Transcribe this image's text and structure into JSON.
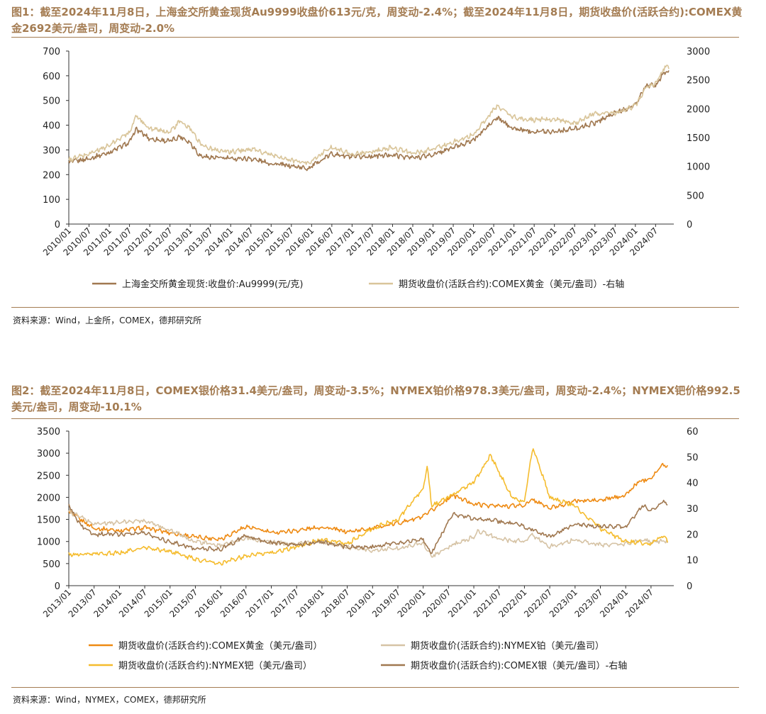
{
  "figures": [
    {
      "title": "图1：截至2024年11月8日，上海金交所黄金现货Au9999收盘价613元/克，周变动-2.4%；截至2024年11月8日，期货收盘价(活跃合约):COMEX黄金2692美元/盎司，周变动-2.0%",
      "source": "资料来源：Wind，上金所，COMEX，德邦研究所"
    },
    {
      "title": "图2：截至2024年11月8日，COMEX银价格31.4美元/盎司，周变动-3.5%；NYMEX铂价格978.3美元/盎司，周变动-2.4%；NYMEX钯价格992.5美元/盎司，周变动-10.1%",
      "source": "资料来源：Wind，NYMEX，COMEX，德邦研究所"
    }
  ],
  "chart_data": [
    {
      "type": "line",
      "xlabel": "",
      "ylabel": "",
      "x_ticks": [
        "2010/01",
        "2010/07",
        "2011/01",
        "2011/07",
        "2012/01",
        "2012/07",
        "2013/01",
        "2013/07",
        "2014/01",
        "2014/07",
        "2015/01",
        "2015/07",
        "2016/01",
        "2016/07",
        "2017/01",
        "2017/07",
        "2018/01",
        "2018/07",
        "2019/01",
        "2019/07",
        "2020/01",
        "2020/07",
        "2021/01",
        "2021/07",
        "2022/01",
        "2022/07",
        "2023/01",
        "2023/07",
        "2024/01",
        "2024/07"
      ],
      "y_left": {
        "range": [
          0,
          700
        ],
        "ticks": [
          0,
          100,
          200,
          300,
          400,
          500,
          600,
          700
        ]
      },
      "y_right": {
        "range": [
          0,
          3000
        ],
        "ticks": [
          0,
          500,
          1000,
          1500,
          2000,
          2500,
          3000
        ]
      },
      "grid": false,
      "legend_position": "bottom",
      "series": [
        {
          "name": "上海金交所黄金现货:收盘价:Au9999(元/克)",
          "axis": "left",
          "color": "#a07850",
          "x": [
            "2010/01",
            "2010/07",
            "2011/01",
            "2011/07",
            "2011/09",
            "2012/01",
            "2012/07",
            "2012/10",
            "2013/01",
            "2013/04",
            "2013/07",
            "2014/01",
            "2014/07",
            "2015/01",
            "2015/07",
            "2015/12",
            "2016/07",
            "2017/01",
            "2017/07",
            "2018/01",
            "2018/07",
            "2019/01",
            "2019/07",
            "2020/01",
            "2020/08",
            "2021/01",
            "2021/07",
            "2022/01",
            "2022/07",
            "2023/01",
            "2023/07",
            "2024/01",
            "2024/04",
            "2024/07",
            "2024/10",
            "2024/11"
          ],
          "values": [
            250,
            265,
            290,
            330,
            385,
            345,
            335,
            355,
            330,
            275,
            270,
            265,
            265,
            245,
            235,
            225,
            285,
            270,
            275,
            280,
            268,
            280,
            310,
            340,
            430,
            385,
            375,
            375,
            385,
            410,
            450,
            480,
            560,
            560,
            620,
            613
          ]
        },
        {
          "name": "期货收盘价(活跃合约):COMEX黄金（美元/盎司）-右轴",
          "axis": "right",
          "color": "#d9c59a",
          "x": [
            "2010/01",
            "2010/07",
            "2011/01",
            "2011/07",
            "2011/09",
            "2012/01",
            "2012/07",
            "2012/10",
            "2013/01",
            "2013/04",
            "2013/07",
            "2014/01",
            "2014/07",
            "2015/01",
            "2015/07",
            "2015/12",
            "2016/07",
            "2017/01",
            "2017/07",
            "2018/01",
            "2018/07",
            "2019/01",
            "2019/07",
            "2020/01",
            "2020/08",
            "2021/01",
            "2021/07",
            "2022/01",
            "2022/07",
            "2023/01",
            "2023/07",
            "2024/01",
            "2024/04",
            "2024/07",
            "2024/10",
            "2024/11"
          ],
          "values": [
            1110,
            1220,
            1360,
            1600,
            1880,
            1650,
            1600,
            1780,
            1650,
            1400,
            1300,
            1250,
            1300,
            1200,
            1100,
            1060,
            1340,
            1200,
            1250,
            1330,
            1220,
            1300,
            1420,
            1560,
            2050,
            1850,
            1800,
            1820,
            1750,
            1920,
            1930,
            2050,
            2350,
            2450,
            2750,
            2692
          ]
        }
      ]
    },
    {
      "type": "line",
      "xlabel": "",
      "ylabel": "",
      "x_ticks": [
        "2013/01",
        "2013/07",
        "2014/01",
        "2014/07",
        "2015/01",
        "2015/07",
        "2016/01",
        "2016/07",
        "2017/01",
        "2017/07",
        "2018/01",
        "2018/07",
        "2019/01",
        "2019/07",
        "2020/01",
        "2020/07",
        "2021/01",
        "2021/07",
        "2022/01",
        "2022/07",
        "2023/01",
        "2023/07",
        "2024/01",
        "2024/07"
      ],
      "y_left": {
        "range": [
          0,
          3500
        ],
        "ticks": [
          0,
          500,
          1000,
          1500,
          2000,
          2500,
          3000,
          3500
        ]
      },
      "y_right": {
        "range": [
          0,
          60
        ],
        "ticks": [
          0,
          10,
          20,
          30,
          40,
          50,
          60
        ]
      },
      "grid": false,
      "legend_position": "bottom",
      "series": [
        {
          "name": "期货收盘价(活跃合约):COMEX黄金（美元/盎司）",
          "axis": "left",
          "color": "#ee8a12",
          "x": [
            "2013/01",
            "2013/07",
            "2014/01",
            "2014/07",
            "2015/01",
            "2015/07",
            "2016/01",
            "2016/07",
            "2017/01",
            "2017/07",
            "2018/01",
            "2018/07",
            "2019/01",
            "2019/07",
            "2020/01",
            "2020/08",
            "2021/01",
            "2021/07",
            "2022/01",
            "2022/03",
            "2022/07",
            "2023/01",
            "2023/07",
            "2024/01",
            "2024/04",
            "2024/07",
            "2024/10",
            "2024/11"
          ],
          "values": [
            1670,
            1300,
            1250,
            1310,
            1200,
            1100,
            1060,
            1340,
            1200,
            1250,
            1330,
            1220,
            1300,
            1420,
            1560,
            2050,
            1850,
            1800,
            1820,
            1950,
            1750,
            1920,
            1930,
            2050,
            2350,
            2450,
            2750,
            2692
          ]
        },
        {
          "name": "期货收盘价(活跃合约):NYMEX铂（美元/盎司）",
          "axis": "left",
          "color": "#d6c3a5",
          "x": [
            "2013/01",
            "2013/07",
            "2014/01",
            "2014/07",
            "2015/01",
            "2015/07",
            "2016/01",
            "2016/07",
            "2017/01",
            "2017/07",
            "2018/01",
            "2018/07",
            "2019/01",
            "2019/07",
            "2020/01",
            "2020/03",
            "2020/08",
            "2021/01",
            "2021/02",
            "2021/07",
            "2022/01",
            "2022/03",
            "2022/07",
            "2023/01",
            "2023/07",
            "2024/01",
            "2024/05",
            "2024/07",
            "2024/10",
            "2024/11"
          ],
          "values": [
            1680,
            1400,
            1430,
            1480,
            1250,
            1000,
            900,
            1080,
            980,
            940,
            1000,
            860,
            800,
            850,
            960,
            650,
            920,
            1100,
            1250,
            1050,
            1000,
            1150,
            880,
            1050,
            920,
            950,
            1050,
            980,
            1000,
            978
          ]
        },
        {
          "name": "期货收盘价(活跃合约):NYMEX钯（美元/盎司）",
          "axis": "left",
          "color": "#f5bc2e",
          "x": [
            "2013/01",
            "2013/07",
            "2014/01",
            "2014/07",
            "2015/01",
            "2015/07",
            "2016/01",
            "2016/07",
            "2017/01",
            "2017/07",
            "2018/01",
            "2018/07",
            "2019/01",
            "2019/07",
            "2020/01",
            "2020/02",
            "2020/03",
            "2020/07",
            "2021/01",
            "2021/05",
            "2021/10",
            "2022/01",
            "2022/03",
            "2022/07",
            "2023/01",
            "2023/07",
            "2024/01",
            "2024/07",
            "2024/10",
            "2024/11"
          ],
          "values": [
            700,
            720,
            740,
            860,
            780,
            600,
            500,
            680,
            740,
            880,
            1050,
            950,
            1300,
            1500,
            2200,
            2700,
            1800,
            2000,
            2350,
            2950,
            2000,
            1900,
            3150,
            2000,
            1800,
            1300,
            1000,
            950,
            1150,
            992
          ]
        },
        {
          "name": "期货收盘价(活跃合约):COMEX银（美元/盎司）-右轴",
          "axis": "right",
          "color": "#a07850",
          "x": [
            "2013/01",
            "2013/04",
            "2013/07",
            "2014/01",
            "2014/07",
            "2015/01",
            "2015/07",
            "2016/01",
            "2016/07",
            "2017/01",
            "2017/07",
            "2018/01",
            "2018/07",
            "2019/01",
            "2019/07",
            "2020/01",
            "2020/03",
            "2020/08",
            "2021/01",
            "2021/07",
            "2022/01",
            "2022/07",
            "2023/01",
            "2023/07",
            "2024/01",
            "2024/05",
            "2024/07",
            "2024/10",
            "2024/11"
          ],
          "values": [
            31,
            23,
            20,
            20,
            20.5,
            17,
            14.5,
            14,
            19.5,
            16.5,
            16,
            17,
            15,
            15,
            16.5,
            18,
            12.5,
            28,
            26,
            25,
            23,
            19,
            24,
            23,
            23,
            31,
            29,
            33,
            31.4
          ]
        }
      ]
    }
  ]
}
